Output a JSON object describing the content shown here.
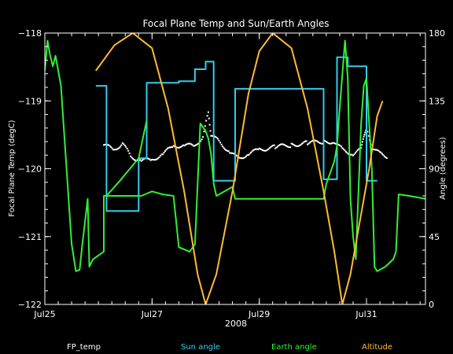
{
  "chart_data": {
    "type": "line",
    "title": "Focal Plane Temp and Sun/Earth Angles",
    "xlabel": "2008",
    "ylabel": "Focal Plane Temp (degC)",
    "y2label": "Angle (degrees)",
    "x_unit": "day of July 2008",
    "xlim": [
      25.0,
      32.1
    ],
    "ylim": [
      -122,
      -118
    ],
    "y2lim": [
      0,
      180
    ],
    "x_ticks": [
      {
        "v": 25,
        "label": "Jul25"
      },
      {
        "v": 27,
        "label": "Jul27"
      },
      {
        "v": 29,
        "label": "Jul29"
      },
      {
        "v": 31,
        "label": "Jul31"
      }
    ],
    "y_ticks": [
      -122,
      -121,
      -120,
      -119,
      -118
    ],
    "y2_ticks": [
      0,
      45,
      90,
      135,
      180
    ],
    "grid": false,
    "legend_position": "bottom",
    "legend": [
      {
        "name": "FP_temp",
        "color": "#ffffff"
      },
      {
        "name": "Sun angle",
        "color": "#33ccee"
      },
      {
        "name": "Earth angle",
        "color": "#33ee33"
      },
      {
        "name": "Altitude",
        "color": "#ffbb33"
      }
    ],
    "series": [
      {
        "name": "FP_temp",
        "axis": "left",
        "style": "points",
        "color": "#ffffff",
        "segments": [
          [
            [
              26.1,
              -119.65
            ],
            [
              26.3,
              -119.72
            ],
            [
              26.45,
              -119.62
            ],
            [
              26.6,
              -119.82
            ],
            [
              26.8,
              -119.88
            ],
            [
              27.0,
              -119.87
            ],
            [
              27.2,
              -119.78
            ],
            [
              27.4,
              -119.67
            ],
            [
              27.6,
              -119.65
            ],
            [
              27.8,
              -119.67
            ],
            [
              27.95,
              -119.52
            ],
            [
              28.05,
              -119.18
            ],
            [
              28.1,
              -119.5
            ],
            [
              28.25,
              -119.6
            ],
            [
              28.45,
              -119.75
            ],
            [
              28.6,
              -119.85
            ],
            [
              28.8,
              -119.78
            ],
            [
              29.0,
              -119.72
            ],
            [
              29.3,
              -119.68
            ],
            [
              29.6,
              -119.65
            ],
            [
              29.9,
              -119.62
            ],
            [
              30.2,
              -119.6
            ],
            [
              30.4,
              -119.6
            ],
            [
              30.55,
              -119.72
            ],
            [
              30.75,
              -119.78
            ],
            [
              30.9,
              -119.72
            ],
            [
              30.95,
              -119.5
            ],
            [
              31.0,
              -119.42
            ],
            [
              31.1,
              -119.68
            ],
            [
              31.25,
              -119.78
            ],
            [
              31.4,
              -119.82
            ]
          ]
        ]
      },
      {
        "name": "Sun angle",
        "axis": "right",
        "style": "line",
        "color": "#33ccee",
        "segments": [
          [
            [
              25.95,
              145
            ],
            [
              26.15,
              145
            ],
            [
              26.15,
              62
            ],
            [
              26.75,
              62
            ],
            [
              26.75,
              97
            ],
            [
              26.9,
              97
            ],
            [
              26.9,
              147
            ],
            [
              27.5,
              147
            ],
            [
              27.5,
              148
            ],
            [
              27.8,
              148
            ],
            [
              27.8,
              156
            ],
            [
              28.0,
              156
            ],
            [
              28.0,
              161
            ],
            [
              28.15,
              161
            ],
            [
              28.15,
              82
            ],
            [
              28.55,
              82
            ],
            [
              28.55,
              143
            ],
            [
              30.2,
              143
            ],
            [
              30.2,
              83
            ],
            [
              30.45,
              83
            ],
            [
              30.45,
              164
            ],
            [
              30.65,
              164
            ],
            [
              30.65,
              158
            ],
            [
              31.0,
              158
            ],
            [
              31.0,
              82
            ],
            [
              31.2,
              82
            ]
          ]
        ]
      },
      {
        "name": "Earth angle",
        "axis": "right",
        "style": "line",
        "color": "#33ee33",
        "segments": [
          [
            [
              25.0,
              155
            ],
            [
              25.05,
              175
            ],
            [
              25.1,
              165
            ],
            [
              25.15,
              158
            ],
            [
              25.2,
              165
            ],
            [
              25.3,
              145
            ],
            [
              25.5,
              40
            ],
            [
              25.58,
              22
            ],
            [
              25.65,
              23
            ],
            [
              25.7,
              40
            ],
            [
              25.75,
              55
            ],
            [
              25.8,
              70
            ],
            [
              25.83,
              25
            ],
            [
              25.87,
              28
            ],
            [
              25.9,
              30
            ],
            [
              26.1,
              35
            ],
            [
              26.1,
              72
            ],
            [
              26.15,
              72
            ],
            [
              26.75,
              72
            ],
            [
              26.8,
              72
            ],
            [
              27.0,
              75
            ],
            [
              27.2,
              73
            ],
            [
              27.4,
              72
            ],
            [
              27.5,
              38
            ],
            [
              27.7,
              35
            ],
            [
              27.8,
              40
            ],
            [
              27.9,
              120
            ],
            [
              28.0,
              115
            ],
            [
              28.05,
              110
            ],
            [
              28.1,
              100
            ],
            [
              28.15,
              80
            ],
            [
              28.2,
              72
            ],
            [
              28.35,
              75
            ],
            [
              28.5,
              78
            ],
            [
              28.55,
              70
            ],
            [
              28.65,
              70
            ],
            [
              30.2,
              70
            ],
            [
              30.25,
              80
            ],
            [
              30.4,
              95
            ],
            [
              30.45,
              105
            ],
            [
              30.5,
              130
            ],
            [
              30.6,
              175
            ],
            [
              30.65,
              150
            ],
            [
              30.7,
              70
            ],
            [
              30.75,
              45
            ],
            [
              30.8,
              30
            ],
            [
              30.9,
              120
            ],
            [
              30.95,
              145
            ],
            [
              31.0,
              150
            ],
            [
              31.05,
              120
            ],
            [
              31.1,
              90
            ],
            [
              31.15,
              25
            ],
            [
              31.2,
              22
            ],
            [
              31.35,
              25
            ],
            [
              31.5,
              30
            ],
            [
              31.55,
              35
            ],
            [
              31.6,
              73
            ],
            [
              31.8,
              72
            ],
            [
              32.1,
              70
            ]
          ],
          [
            [
              26.15,
              72
            ],
            [
              26.4,
              82
            ],
            [
              26.75,
              97
            ],
            [
              26.9,
              122
            ]
          ]
        ]
      },
      {
        "name": "Altitude",
        "axis": "right",
        "style": "line",
        "color": "#ffbb33",
        "segments": [
          [
            [
              25.95,
              155
            ],
            [
              26.3,
              172
            ],
            [
              26.64,
              180
            ],
            [
              27.0,
              170
            ],
            [
              27.3,
              130
            ],
            [
              27.6,
              75
            ],
            [
              27.85,
              20
            ],
            [
              28.0,
              0
            ],
            [
              28.2,
              20
            ],
            [
              28.5,
              75
            ],
            [
              28.8,
              140
            ],
            [
              29.0,
              168
            ],
            [
              29.25,
              180
            ],
            [
              29.6,
              170
            ],
            [
              29.9,
              130
            ],
            [
              30.2,
              75
            ],
            [
              30.4,
              35
            ],
            [
              30.55,
              0
            ],
            [
              30.7,
              20
            ],
            [
              30.9,
              60
            ],
            [
              31.05,
              90
            ],
            [
              31.2,
              125
            ],
            [
              31.3,
              135
            ]
          ]
        ]
      }
    ]
  }
}
